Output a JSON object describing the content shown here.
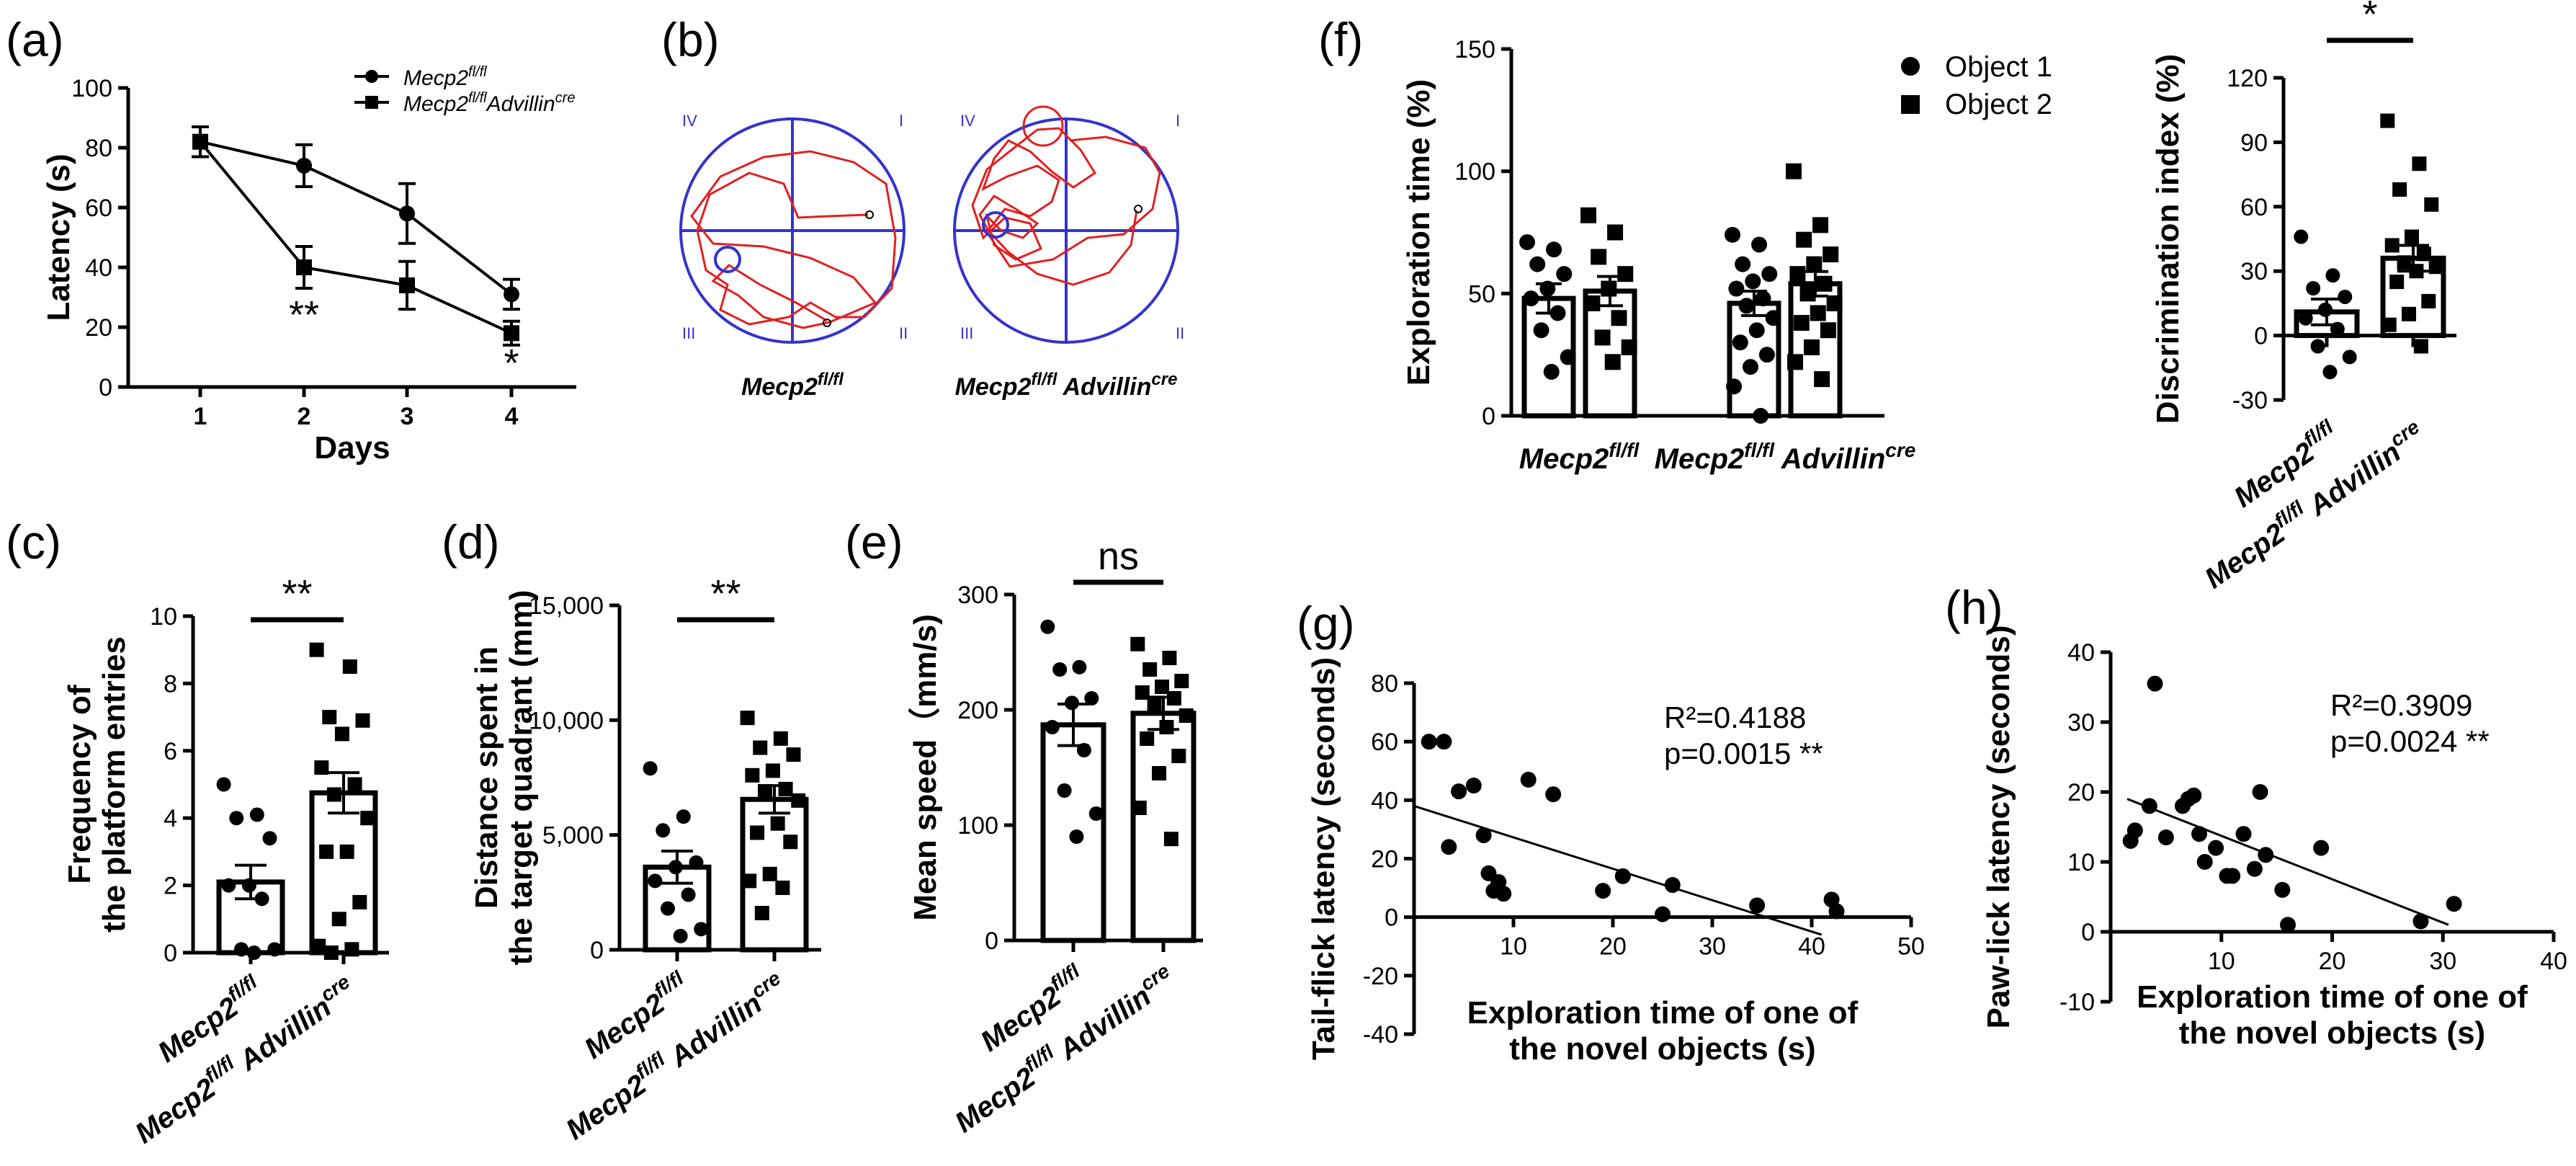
{
  "panels": {
    "a": "(a)",
    "b": "(b)",
    "c": "(c)",
    "d": "(d)",
    "e": "(e)",
    "f": "(f)",
    "g": "(g)",
    "h": "(h)"
  },
  "b": {
    "quadrants": [
      "IV",
      "I",
      "III",
      "II"
    ],
    "label1": "Mecp2",
    "sup1": "fl/fl",
    "label2": "Mecp2",
    "sup2": "fl/fl",
    "label2b": " Advillin",
    "sup2b": "cre"
  },
  "groups": {
    "g1": "Mecp2",
    "g1sup": "fl/fl",
    "g2": "Mecp2",
    "g2sup": "fl/fl",
    "g2b": " Advillin",
    "g2bsup": "cre"
  },
  "chart_data": [
    {
      "panel": "a",
      "type": "line",
      "xlabel": "Days",
      "ylabel": "Latency (s)",
      "x": [
        1,
        2,
        3,
        4
      ],
      "xticks": [
        "1",
        "2",
        "3",
        "4"
      ],
      "ylim": [
        0,
        100
      ],
      "yticks": [
        "0",
        "20",
        "40",
        "60",
        "80",
        "100"
      ],
      "legend": [
        {
          "name": "Mecp2",
          "sup": "fl/fl",
          "marker": "circle"
        },
        {
          "name": "Mecp2",
          "sup": "fl/fl",
          "name2": "Advillin",
          "sup2": "cre",
          "marker": "square"
        }
      ],
      "series": [
        {
          "name": "Mecp2 fl/fl",
          "marker": "circle",
          "values": [
            82,
            74,
            58,
            31
          ],
          "errors": [
            5,
            7,
            10,
            5
          ]
        },
        {
          "name": "Mecp2 fl/fl Advillin cre",
          "marker": "square",
          "values": [
            82,
            40,
            34,
            18
          ],
          "errors": [
            5,
            7,
            8,
            4
          ]
        }
      ],
      "annotations": [
        {
          "x": 2,
          "text": "**"
        },
        {
          "x": 4,
          "text": "*"
        }
      ]
    },
    {
      "panel": "c",
      "type": "bar",
      "ylabel_line1": "Frequency of",
      "ylabel_line2": "the platform entries",
      "ylim": [
        0,
        10
      ],
      "yticks": [
        "0",
        "2",
        "4",
        "6",
        "8",
        "10"
      ],
      "sig": "**",
      "groups": [
        {
          "mean": 2.1,
          "sem": 0.5,
          "marker": "circle",
          "points": [
            5,
            4.1,
            4,
            3.4,
            2,
            2,
            1.6,
            0.1,
            0.1,
            0
          ]
        },
        {
          "mean": 4.75,
          "sem": 0.6,
          "marker": "square",
          "points": [
            9,
            8.5,
            7,
            6.9,
            6.5,
            5.5,
            5,
            4.7,
            4,
            3,
            3,
            1.5,
            1,
            0.2,
            0.1,
            0
          ]
        }
      ]
    },
    {
      "panel": "d",
      "type": "bar",
      "ylabel_line1": "Distance spent in",
      "ylabel_line2": "the target quadrant (mm)",
      "ylim": [
        0,
        15000
      ],
      "yticks": [
        "0",
        "5,000",
        "10,000",
        "15,000"
      ],
      "sig": "**",
      "groups": [
        {
          "mean": 3600,
          "sem": 700,
          "marker": "circle",
          "points": [
            7900,
            5800,
            5200,
            3800,
            3600,
            3000,
            2400,
            1800,
            900,
            600
          ]
        },
        {
          "mean": 6550,
          "sem": 600,
          "marker": "square",
          "points": [
            10100,
            9200,
            8800,
            8500,
            7800,
            7600,
            7000,
            6900,
            6500,
            5500,
            5100,
            4700,
            3300,
            3000,
            2700,
            1600
          ]
        }
      ]
    },
    {
      "panel": "e",
      "type": "bar",
      "ylabel": "Mean speed（mm/s)",
      "ylim": [
        0,
        300
      ],
      "yticks": [
        "0",
        "100",
        "200",
        "300"
      ],
      "sig": "ns",
      "groups": [
        {
          "mean": 187,
          "sem": 18,
          "marker": "circle",
          "points": [
            272,
            237,
            235,
            210,
            206,
            185,
            165,
            130,
            110,
            90
          ]
        },
        {
          "mean": 197,
          "sem": 14,
          "marker": "square",
          "points": [
            257,
            245,
            235,
            225,
            220,
            215,
            210,
            205,
            195,
            185,
            175,
            160,
            145,
            115,
            88
          ]
        }
      ]
    },
    {
      "panel": "f",
      "type": "bar",
      "ylabel": "Exploration time (%)",
      "ylim": [
        0,
        150
      ],
      "yticks": [
        "0",
        "50",
        "100",
        "150"
      ],
      "legend": [
        {
          "name": "Object 1",
          "marker": "circle"
        },
        {
          "name": "Object 2",
          "marker": "square"
        }
      ],
      "clusters": [
        {
          "bars": [
            {
              "mean": 48,
              "sem": 6,
              "marker": "circle",
              "points": [
                71,
                68,
                62,
                58,
                52,
                48,
                42,
                35,
                24,
                18
              ]
            },
            {
              "mean": 51,
              "sem": 6,
              "marker": "square",
              "points": [
                82,
                75,
                65,
                58,
                52,
                46,
                40,
                32,
                28,
                22
              ]
            }
          ]
        },
        {
          "bars": [
            {
              "mean": 46,
              "sem": 5,
              "marker": "circle",
              "points": [
                74,
                70,
                62,
                58,
                55,
                52,
                48,
                45,
                40,
                35,
                30,
                25,
                20,
                12,
                0
              ]
            },
            {
              "mean": 54,
              "sem": 5,
              "marker": "square",
              "points": [
                100,
                78,
                72,
                66,
                62,
                58,
                54,
                50,
                46,
                42,
                38,
                35,
                28,
                22,
                15
              ]
            }
          ]
        }
      ]
    },
    {
      "panel": "f-right",
      "type": "bar",
      "ylabel": "Discrimination index (%)",
      "ylim": [
        -30,
        120
      ],
      "yticks": [
        "-30",
        "0",
        "30",
        "60",
        "90",
        "120"
      ],
      "sig": "*",
      "groups": [
        {
          "mean": 11,
          "sem": 6,
          "marker": "circle",
          "points": [
            46,
            28,
            22,
            18,
            12,
            8,
            3,
            -5,
            -10,
            -17
          ]
        },
        {
          "mean": 36,
          "sem": 6,
          "marker": "square",
          "points": [
            100,
            80,
            68,
            61,
            46,
            42,
            38,
            34,
            32,
            30,
            25,
            16,
            10,
            5,
            -5
          ]
        }
      ]
    },
    {
      "panel": "g",
      "type": "scatter",
      "xlabel_line1": "Exploration time of one of",
      "xlabel_line2": "the novel objects (s)",
      "ylabel": "Tail-flick latency (seconds)",
      "xlim": [
        0,
        50
      ],
      "ylim": [
        -40,
        80
      ],
      "xticks": [
        "10",
        "20",
        "30",
        "40",
        "50"
      ],
      "yticks": [
        "-40",
        "-20",
        "0",
        "20",
        "40",
        "60",
        "80"
      ],
      "r2": "R²=0.4188",
      "p": "p=0.0015 **",
      "fit": {
        "x": [
          0,
          41
        ],
        "y": [
          38,
          -6
        ]
      },
      "points": [
        [
          1.5,
          60
        ],
        [
          3,
          60
        ],
        [
          3.5,
          24
        ],
        [
          4.5,
          43
        ],
        [
          6,
          45
        ],
        [
          7,
          28
        ],
        [
          7.5,
          15
        ],
        [
          8,
          9
        ],
        [
          8.5,
          12
        ],
        [
          9,
          8
        ],
        [
          11.5,
          47
        ],
        [
          14,
          42
        ],
        [
          19,
          9
        ],
        [
          21,
          14
        ],
        [
          25,
          1
        ],
        [
          26,
          11
        ],
        [
          34.5,
          4
        ],
        [
          42,
          6
        ],
        [
          42.5,
          2
        ]
      ]
    },
    {
      "panel": "h",
      "type": "scatter",
      "xlabel_line1": "Exploration time of one of",
      "xlabel_line2": "the novel objects (s)",
      "ylabel": "Paw-lick latency (seconds)",
      "xlim": [
        0,
        40
      ],
      "ylim": [
        -10,
        40
      ],
      "xticks": [
        "10",
        "20",
        "30",
        "40"
      ],
      "yticks": [
        "-10",
        "0",
        "10",
        "20",
        "30",
        "40"
      ],
      "r2": "R²=0.3909",
      "p": "p=0.0024 **",
      "fit": {
        "x": [
          1.5,
          30.5
        ],
        "y": [
          19,
          1
        ]
      },
      "points": [
        [
          1.8,
          13
        ],
        [
          2.2,
          14.5
        ],
        [
          3.5,
          18
        ],
        [
          4,
          35.5
        ],
        [
          5,
          13.5
        ],
        [
          6.5,
          18
        ],
        [
          7,
          19
        ],
        [
          7.5,
          19.5
        ],
        [
          8,
          14
        ],
        [
          8.5,
          10
        ],
        [
          9.5,
          12
        ],
        [
          10.5,
          8
        ],
        [
          11,
          8
        ],
        [
          12,
          14
        ],
        [
          13,
          9
        ],
        [
          13.5,
          20
        ],
        [
          14,
          11
        ],
        [
          15.5,
          6
        ],
        [
          16,
          1
        ],
        [
          19,
          12
        ],
        [
          28,
          1.5
        ],
        [
          31,
          4
        ]
      ]
    }
  ]
}
